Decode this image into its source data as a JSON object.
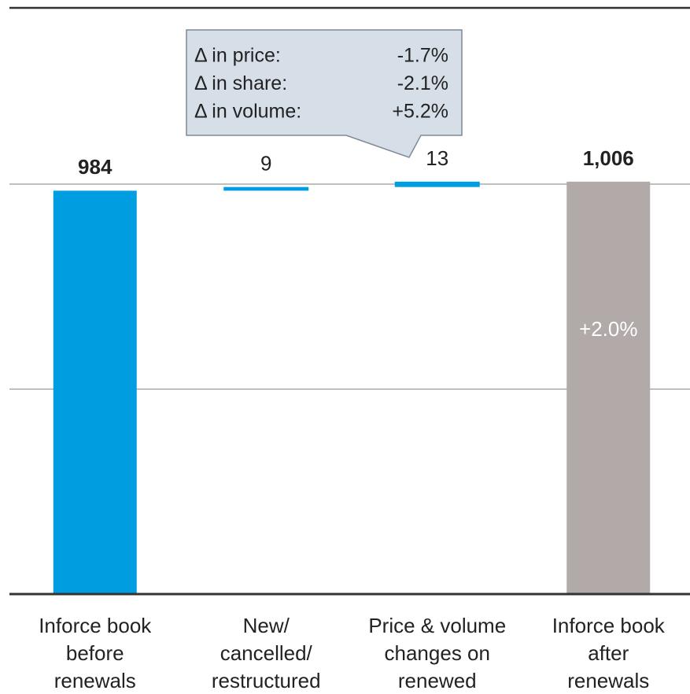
{
  "chart_data": {
    "type": "waterfall",
    "categories": [
      "Inforce book\nbefore\nrenewals",
      "New/\ncancelled/\nrestructured",
      "Price & volume\nchanges on\nrenewed",
      "Inforce book\nafter\nrenewals"
    ],
    "values": [
      984,
      9,
      13,
      1006
    ],
    "value_labels": [
      "984",
      "9",
      "13",
      "1,006"
    ],
    "kinds": [
      "total",
      "delta",
      "delta",
      "total"
    ],
    "colors": [
      "#009ee0",
      "#009ee0",
      "#009ee0",
      "#b1aaa9"
    ],
    "ylim": [
      0,
      1430
    ],
    "yticks": [
      500,
      1000
    ],
    "grid": true,
    "bar_annotation": "+2.0%",
    "callout": [
      [
        "Δ in price:",
        "-1.7%"
      ],
      [
        "Δ in share:",
        "-2.1%"
      ],
      [
        "Δ in volume:",
        "+5.2%"
      ]
    ]
  }
}
